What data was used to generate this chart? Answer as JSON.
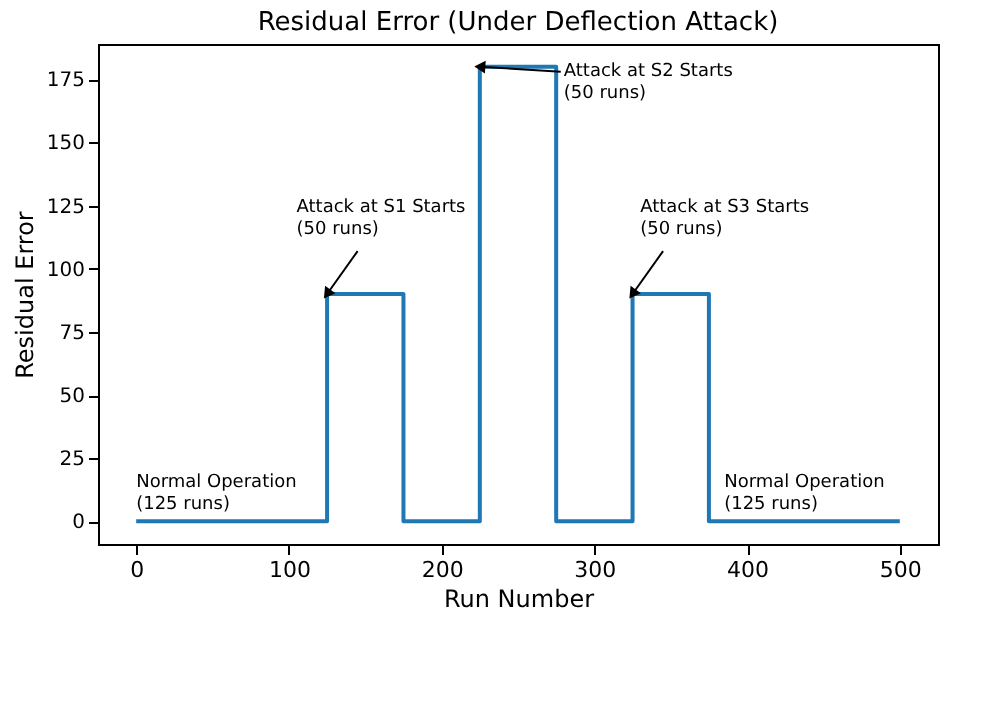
{
  "chart_data": {
    "type": "line",
    "title": "Residual Error (Under Deflection Attack)",
    "xlabel": "Run Number",
    "ylabel": "Residual Error",
    "x": [
      0,
      125,
      125,
      175,
      175,
      225,
      225,
      275,
      275,
      325,
      325,
      375,
      375,
      500
    ],
    "series": [
      {
        "color": "#1f77b4",
        "values": [
          0,
          0,
          90,
          90,
          0,
          0,
          180,
          180,
          0,
          0,
          90,
          90,
          0,
          0
        ]
      }
    ],
    "xlim": [
      -25,
      525
    ],
    "ylim": [
      -9,
      189
    ],
    "xticks": [
      0,
      100,
      200,
      300,
      400,
      500
    ],
    "yticks": [
      0,
      25,
      50,
      75,
      100,
      125,
      150,
      175
    ],
    "grid": false,
    "marker": "none",
    "line_style": "solid",
    "annotations": [
      {
        "text": "Normal Operation\n(125 runs)",
        "x": 0,
        "y": 0
      },
      {
        "text": "Attack at S1 Starts\n(50 runs)",
        "x": 125,
        "y": 90
      },
      {
        "text": "Attack at S2 Starts\n(50 runs)",
        "x": 225,
        "y": 180
      },
      {
        "text": "Attack at S3 Starts\n(50 runs)",
        "x": 325,
        "y": 90
      },
      {
        "text": "Normal Operation\n(125 runs)",
        "x": 400,
        "y": 0
      }
    ]
  }
}
